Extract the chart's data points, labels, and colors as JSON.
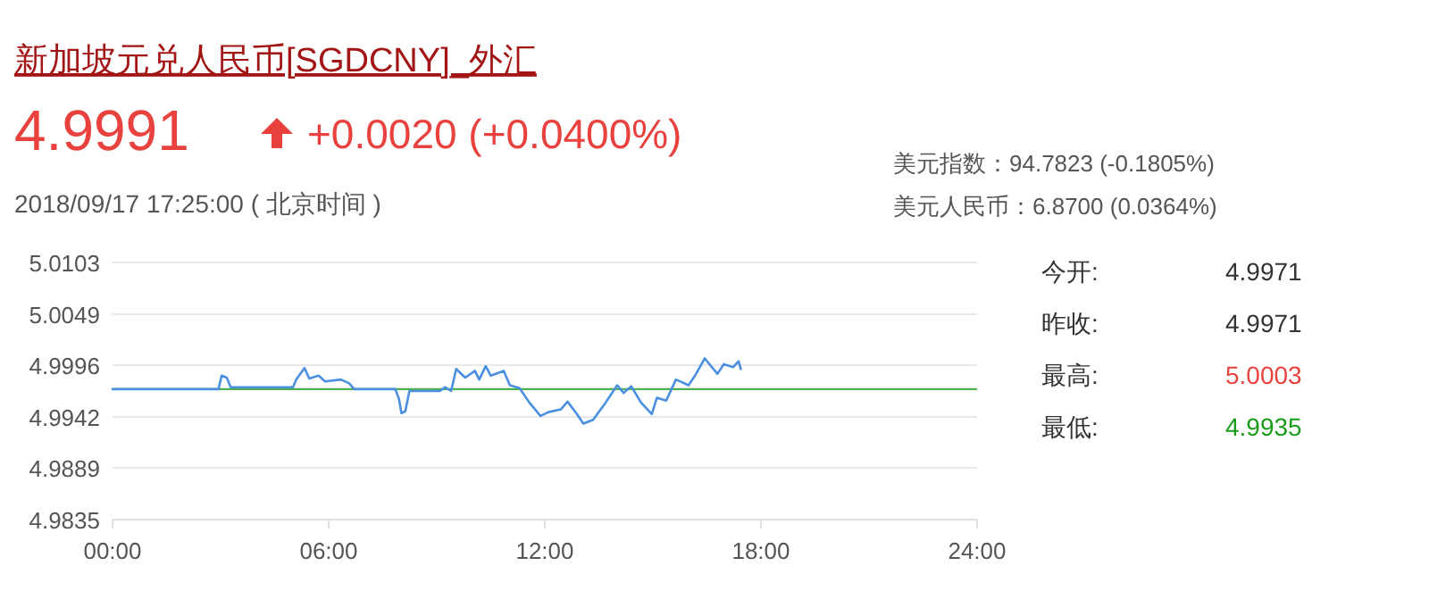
{
  "chart_data": {
    "type": "line",
    "title": "新加坡元兑人民币[SGDCNY]_外汇",
    "annotations": [
      "4.9991",
      "+0.0020 (+0.0400%)",
      "2018/09/17 17:25:00    ( 北京时间 )",
      "美元指数：94.7823 (-0.1805%)",
      "美元人民币：6.8700 (0.0364%)",
      "今开:",
      "4.9971",
      "昨收:",
      "4.9971",
      "最高:",
      "5.0003",
      "最低:",
      "4.9935"
    ],
    "series": [
      {
        "color": "#4a8fe0",
        "x": [
          0,
          2.94,
          3.03,
          3.17,
          3.28,
          5.01,
          5.1,
          5.33,
          5.46,
          5.72,
          5.9,
          6.34,
          6.57,
          6.71,
          7.85,
          7.95,
          8.02,
          8.13,
          8.24,
          9.09,
          9.23,
          9.4,
          9.54,
          9.79,
          10.06,
          10.18,
          10.36,
          10.5,
          10.86,
          11.03,
          11.3,
          11.57,
          11.88,
          12.1,
          12.45,
          12.63,
          12.89,
          13.07,
          13.34,
          13.69,
          14.01,
          14.19,
          14.4,
          14.67,
          14.97,
          15.11,
          15.37,
          15.64,
          15.99,
          16.17,
          16.44,
          16.79,
          16.97,
          17.23,
          17.38,
          17.44
        ],
        "values": [
          4.9971,
          4.9971,
          4.9985,
          4.9983,
          4.9973,
          4.9973,
          4.9981,
          4.9993,
          4.9982,
          4.9985,
          4.9979,
          4.9981,
          4.9977,
          4.9971,
          4.9971,
          4.9961,
          4.9946,
          4.9948,
          4.9969,
          4.9969,
          4.9973,
          4.9969,
          4.9992,
          4.9983,
          4.999,
          4.9981,
          4.9995,
          4.9985,
          4.999,
          4.9975,
          4.9972,
          4.9957,
          4.9943,
          4.9947,
          4.995,
          4.9958,
          4.9945,
          4.9935,
          4.9939,
          4.9957,
          4.9975,
          4.9967,
          4.9974,
          4.9957,
          4.9945,
          4.9962,
          4.9959,
          4.9981,
          4.9975,
          4.9985,
          5.0003,
          4.9987,
          4.9997,
          4.9994,
          5.0,
          4.9992
        ]
      }
    ],
    "ref_lines": [
      {
        "axis": "y",
        "value": 4.9971,
        "color": "#4caf50"
      }
    ],
    "xlim": [
      0,
      24
    ],
    "ylim": [
      4.9835,
      5.0103
    ],
    "xticks": [
      {
        "value": 0,
        "label": "00:00"
      },
      {
        "value": 6,
        "label": "06:00"
      },
      {
        "value": 12,
        "label": "12:00"
      },
      {
        "value": 18,
        "label": "18:00"
      },
      {
        "value": 24,
        "label": "24:00"
      }
    ],
    "yticks": [
      4.9835,
      4.9889,
      4.9942,
      4.9996,
      5.0049,
      5.0103
    ],
    "grid": "y",
    "marker": "none",
    "line_style": "solid"
  }
}
